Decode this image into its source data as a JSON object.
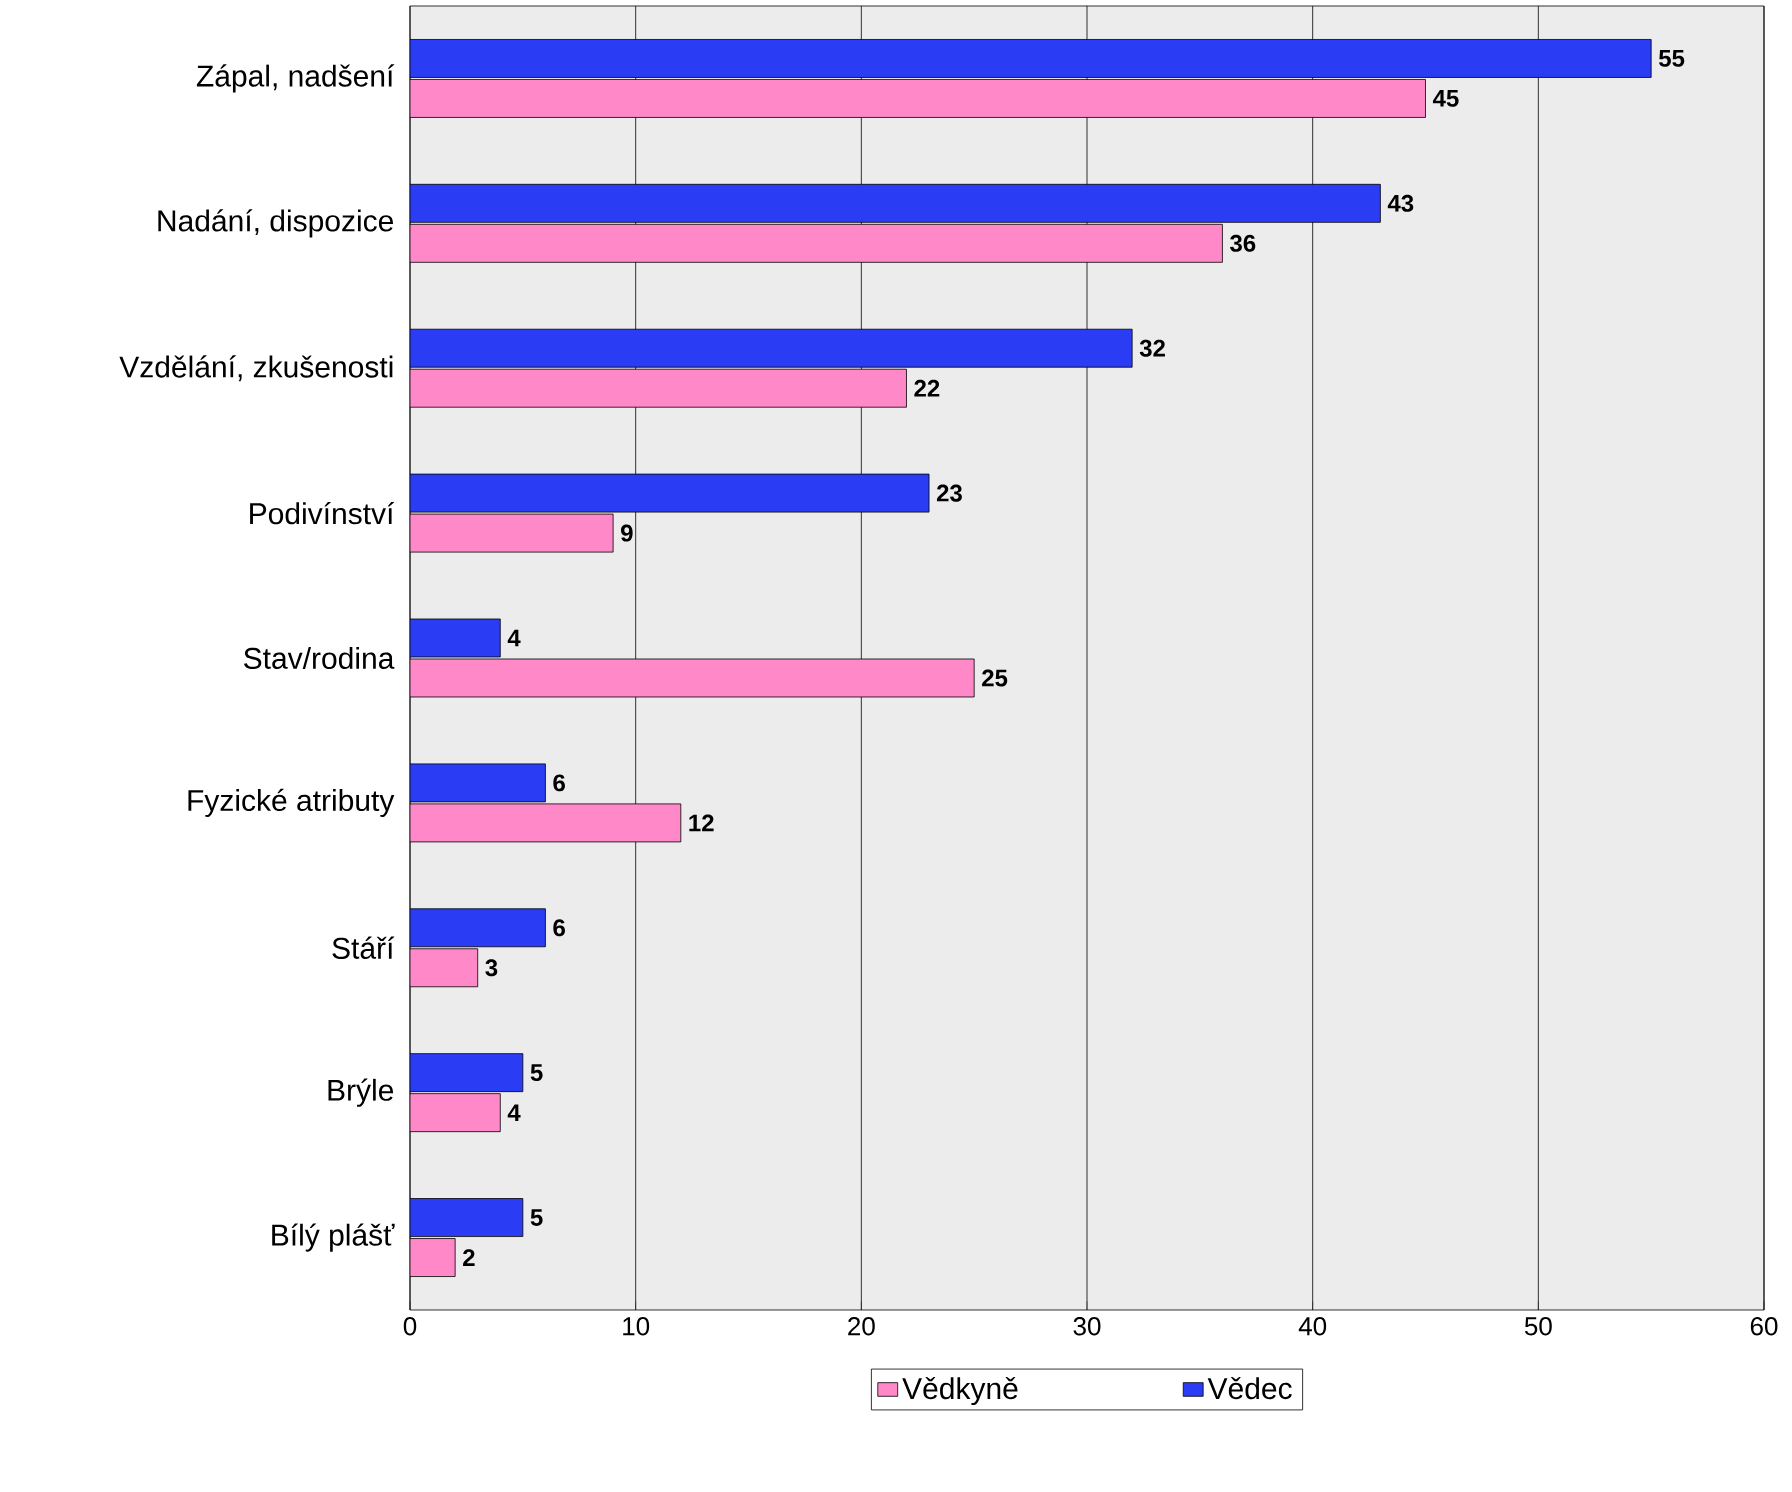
{
  "chart_data": {
    "type": "bar",
    "orientation": "horizontal",
    "categories": [
      "Zápal, nadšení",
      "Nadání, dispozice",
      "Vzdělání, zkušenosti",
      "Podivínství",
      "Stav/rodina",
      "Fyzické atributy",
      "Stáří",
      "Brýle",
      "Bílý plášť"
    ],
    "series": [
      {
        "name": "Vědkyně",
        "color": "#ff88c8",
        "values": [
          45,
          36,
          22,
          9,
          25,
          12,
          3,
          4,
          2
        ]
      },
      {
        "name": "Vědec",
        "color": "#2b3cf5",
        "values": [
          55,
          43,
          32,
          23,
          4,
          6,
          6,
          5,
          5
        ]
      }
    ],
    "xlim": [
      0,
      60
    ],
    "xticks": [
      0,
      10,
      20,
      30,
      40,
      50,
      60
    ],
    "grid": "x",
    "legend": "bottom",
    "data_labels": true
  }
}
